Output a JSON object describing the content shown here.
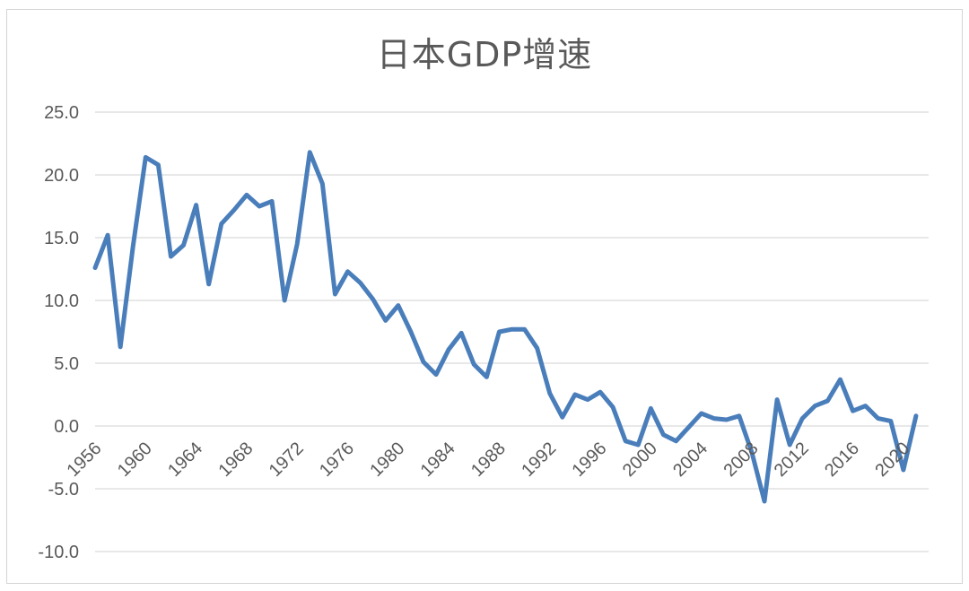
{
  "chart_data": {
    "type": "line",
    "title": "日本GDP增速",
    "xlabel": "",
    "ylabel": "",
    "ylim": [
      -10,
      25
    ],
    "y_ticks": [
      "25.0",
      "20.0",
      "15.0",
      "10.0",
      "5.0",
      "0.0",
      "-5.0",
      "-10.0"
    ],
    "x_ticks": [
      "1956",
      "1960",
      "1964",
      "1968",
      "1972",
      "1976",
      "1980",
      "1984",
      "1988",
      "1992",
      "1996",
      "2000",
      "2004",
      "2008",
      "2012",
      "2016",
      "2020"
    ],
    "grid": true,
    "legend": "none",
    "line_color": "#4a7ebb",
    "x": [
      1956,
      1957,
      1958,
      1959,
      1960,
      1961,
      1962,
      1963,
      1964,
      1965,
      1966,
      1967,
      1968,
      1969,
      1970,
      1971,
      1972,
      1973,
      1974,
      1975,
      1976,
      1977,
      1978,
      1979,
      1980,
      1981,
      1982,
      1983,
      1984,
      1985,
      1986,
      1987,
      1988,
      1989,
      1990,
      1991,
      1992,
      1993,
      1994,
      1995,
      1996,
      1997,
      1998,
      1999,
      2000,
      2001,
      2002,
      2003,
      2004,
      2005,
      2006,
      2007,
      2008,
      2009,
      2010,
      2011,
      2012,
      2013,
      2014,
      2015,
      2016,
      2017,
      2018,
      2019,
      2020,
      2021,
      2022
    ],
    "values": [
      12.6,
      15.2,
      6.3,
      14.3,
      21.4,
      20.8,
      13.5,
      14.4,
      17.6,
      11.3,
      16.1,
      17.2,
      18.4,
      17.5,
      17.9,
      10.0,
      14.5,
      21.8,
      19.3,
      10.5,
      12.3,
      11.4,
      10.1,
      8.4,
      9.6,
      7.5,
      5.1,
      4.1,
      6.1,
      7.4,
      4.9,
      3.9,
      7.5,
      7.7,
      7.7,
      6.2,
      2.6,
      0.7,
      2.5,
      2.1,
      2.7,
      1.5,
      -1.2,
      -1.5,
      1.4,
      -0.7,
      -1.2,
      -0.1,
      1.0,
      0.6,
      0.5,
      0.8,
      -2.1,
      -6.0,
      2.1,
      -1.5,
      0.6,
      1.6,
      2.0,
      3.7,
      1.2,
      1.6,
      0.6,
      0.4,
      -3.5,
      0.8,
      null
    ]
  }
}
